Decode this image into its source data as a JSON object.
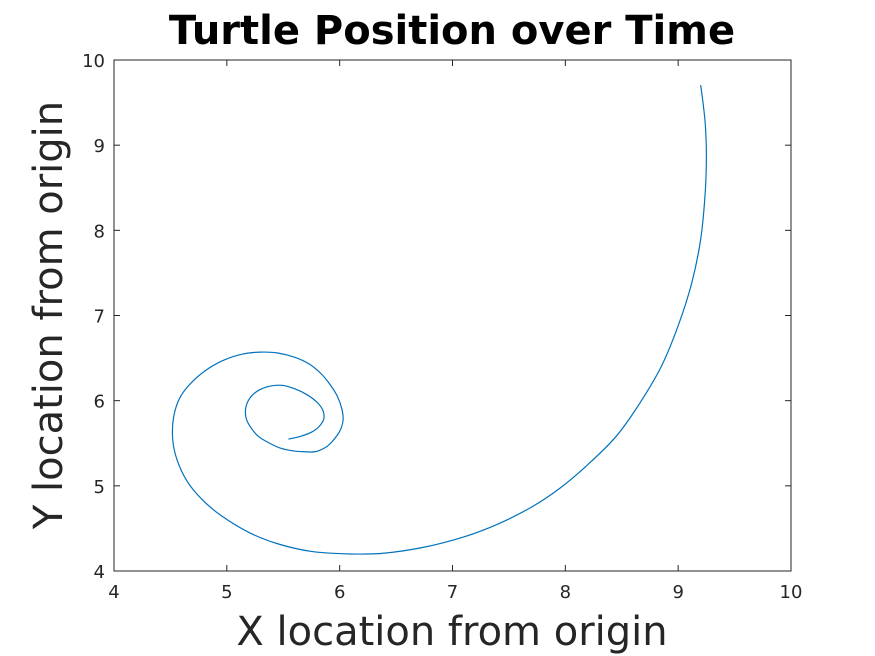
{
  "chart_data": {
    "type": "line",
    "title": "Turtle Position over Time",
    "xlabel": "X location from origin",
    "ylabel": "Y location from origin",
    "xlim": [
      4,
      10
    ],
    "ylim": [
      4,
      10
    ],
    "xticks": [
      "4",
      "5",
      "6",
      "7",
      "8",
      "9",
      "10"
    ],
    "yticks": [
      "4",
      "5",
      "6",
      "7",
      "8",
      "9",
      "10"
    ],
    "grid": false,
    "legend": "none",
    "line_color": "#0072bd",
    "series": [
      {
        "x": [
          5.55,
          5.65,
          5.75,
          5.82,
          5.86,
          5.85,
          5.8,
          5.71,
          5.6,
          5.49,
          5.38,
          5.28,
          5.21,
          5.17,
          5.17,
          5.21,
          5.28,
          5.38,
          5.48,
          5.59,
          5.69,
          5.78,
          5.86,
          5.92,
          6.0,
          6.03,
          6.02,
          5.98,
          5.92,
          5.84,
          5.73,
          5.6,
          5.45,
          5.3,
          5.15,
          4.98,
          4.84,
          4.7,
          4.59,
          4.53,
          4.52,
          4.56,
          4.65,
          4.78,
          4.95,
          5.2,
          5.45,
          5.75,
          6.1,
          6.4,
          6.75,
          7.1,
          7.4,
          7.7,
          7.95,
          8.2,
          8.45,
          8.65,
          8.85,
          9.0,
          9.12,
          9.2,
          9.24,
          9.25,
          9.24,
          9.22,
          9.2
        ],
        "y": [
          5.55,
          5.58,
          5.63,
          5.7,
          5.79,
          5.89,
          5.98,
          6.07,
          6.14,
          6.18,
          6.17,
          6.12,
          6.04,
          5.93,
          5.8,
          5.69,
          5.58,
          5.5,
          5.44,
          5.41,
          5.4,
          5.4,
          5.44,
          5.5,
          5.64,
          5.77,
          5.9,
          6.05,
          6.18,
          6.31,
          6.43,
          6.51,
          6.56,
          6.57,
          6.55,
          6.48,
          6.38,
          6.23,
          6.05,
          5.82,
          5.55,
          5.3,
          5.05,
          4.84,
          4.65,
          4.45,
          4.32,
          4.23,
          4.2,
          4.21,
          4.28,
          4.4,
          4.55,
          4.75,
          4.97,
          5.25,
          5.58,
          5.95,
          6.4,
          6.88,
          7.38,
          7.9,
          8.45,
          8.9,
          9.25,
          9.5,
          9.7
        ]
      }
    ]
  }
}
